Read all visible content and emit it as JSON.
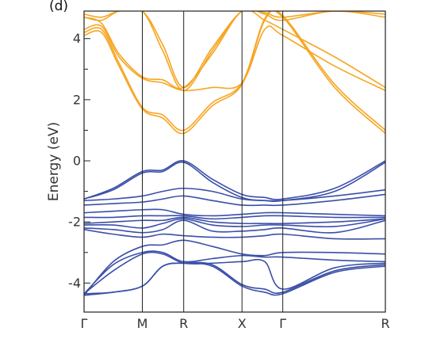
{
  "chart_data": {
    "type": "line",
    "panel_label": "(d)",
    "title": "",
    "xlabel": "",
    "ylabel": "Energy (eV)",
    "ylim": [
      -4.95,
      4.9
    ],
    "yticks": [
      {
        "value": 4,
        "label": "4"
      },
      {
        "value": 2,
        "label": "2"
      },
      {
        "value": 0,
        "label": "0"
      },
      {
        "value": -2,
        "label": "-2"
      },
      {
        "value": -4,
        "label": "-4"
      }
    ],
    "x_range": [
      0,
      5.17
    ],
    "kpoints": [
      {
        "label": "Γ",
        "x": 0
      },
      {
        "label": "M",
        "x": 1.0
      },
      {
        "label": "R",
        "x": 1.71
      },
      {
        "label": "X",
        "x": 2.71
      },
      {
        "label": "Γ",
        "x": 3.41
      },
      {
        "label": "R",
        "x": 5.17
      }
    ],
    "grid": false,
    "colors": {
      "conduction": "#f5a623",
      "valence": "#3a4fa8",
      "axis": "#222222"
    },
    "series": [
      {
        "band": "valence",
        "x": [
          0,
          0.5,
          1.0,
          1.35,
          1.71,
          2.2,
          2.71,
          3.1,
          3.41,
          4.3,
          5.17
        ],
        "y": [
          -1.25,
          -0.9,
          -0.35,
          -0.3,
          0.0,
          -0.6,
          -1.1,
          -1.2,
          -1.25,
          -0.9,
          0.0
        ]
      },
      {
        "band": "valence",
        "x": [
          0,
          0.5,
          1.0,
          1.35,
          1.71,
          2.2,
          2.71,
          3.1,
          3.41,
          4.3,
          5.17
        ],
        "y": [
          -1.25,
          -0.95,
          -0.4,
          -0.35,
          -0.05,
          -0.7,
          -1.2,
          -1.3,
          -1.3,
          -1.0,
          -0.05
        ]
      },
      {
        "band": "valence",
        "x": [
          0,
          0.5,
          1.0,
          1.35,
          1.71,
          2.2,
          2.71,
          3.1,
          3.41,
          4.3,
          5.17
        ],
        "y": [
          -1.3,
          -1.25,
          -1.15,
          -1.0,
          -0.9,
          -1.0,
          -1.25,
          -1.3,
          -1.3,
          -1.15,
          -0.95
        ]
      },
      {
        "band": "valence",
        "x": [
          0,
          0.5,
          1.0,
          1.35,
          1.71,
          2.2,
          2.71,
          3.1,
          3.41,
          4.3,
          5.17
        ],
        "y": [
          -1.45,
          -1.4,
          -1.35,
          -1.25,
          -1.15,
          -1.3,
          -1.45,
          -1.45,
          -1.45,
          -1.3,
          -1.1
        ]
      },
      {
        "band": "valence",
        "x": [
          0,
          0.5,
          1.0,
          1.35,
          1.71,
          2.2,
          2.71,
          3.1,
          3.41,
          4.3,
          5.17
        ],
        "y": [
          -1.7,
          -1.65,
          -1.6,
          -1.6,
          -1.75,
          -1.8,
          -1.75,
          -1.7,
          -1.7,
          -1.75,
          -1.8
        ]
      },
      {
        "band": "valence",
        "x": [
          0,
          0.5,
          1.0,
          1.35,
          1.71,
          2.2,
          2.71,
          3.1,
          3.41,
          4.3,
          5.17
        ],
        "y": [
          -1.85,
          -1.85,
          -1.8,
          -1.8,
          -1.8,
          -1.9,
          -1.85,
          -1.8,
          -1.8,
          -1.85,
          -1.85
        ]
      },
      {
        "band": "valence",
        "x": [
          0,
          0.5,
          1.0,
          1.35,
          1.71,
          2.2,
          2.71,
          3.1,
          3.41,
          4.3,
          5.17
        ],
        "y": [
          -2.05,
          -2.0,
          -1.95,
          -1.95,
          -1.85,
          -2.0,
          -2.05,
          -2.05,
          -2.05,
          -2.0,
          -1.9
        ]
      },
      {
        "band": "valence",
        "x": [
          0,
          0.5,
          1.0,
          1.35,
          1.71,
          2.2,
          2.71,
          3.1,
          3.41,
          4.3,
          5.17
        ],
        "y": [
          -2.1,
          -2.1,
          -2.2,
          -2.05,
          -1.9,
          -2.1,
          -2.15,
          -2.1,
          -2.1,
          -2.15,
          -1.9
        ]
      },
      {
        "band": "valence",
        "x": [
          0,
          0.5,
          1.0,
          1.35,
          1.71,
          2.2,
          2.71,
          3.1,
          3.41,
          4.3,
          5.17
        ],
        "y": [
          -2.2,
          -2.25,
          -2.35,
          -2.25,
          -1.95,
          -2.3,
          -2.3,
          -2.25,
          -2.2,
          -2.35,
          -1.95
        ]
      },
      {
        "band": "valence",
        "x": [
          0,
          0.5,
          1.0,
          1.35,
          1.71,
          2.2,
          2.71,
          3.1,
          3.41,
          4.3,
          5.17
        ],
        "y": [
          -2.25,
          -2.4,
          -2.5,
          -2.4,
          -2.45,
          -2.5,
          -2.5,
          -2.45,
          -2.4,
          -2.55,
          -2.55
        ]
      },
      {
        "band": "valence",
        "x": [
          0,
          0.5,
          1.0,
          1.35,
          1.71,
          2.2,
          2.71,
          3.1,
          3.41,
          4.3,
          5.17
        ],
        "y": [
          -4.4,
          -3.3,
          -2.8,
          -2.75,
          -2.6,
          -2.8,
          -3.05,
          -3.1,
          -3.0,
          -3.0,
          -3.05
        ]
      },
      {
        "band": "valence",
        "x": [
          0,
          0.5,
          1.0,
          1.35,
          1.71,
          2.2,
          2.71,
          3.1,
          3.41,
          4.3,
          5.17
        ],
        "y": [
          -4.35,
          -3.4,
          -3.0,
          -3.0,
          -3.3,
          -3.2,
          -3.1,
          -3.15,
          -3.15,
          -3.25,
          -3.3
        ]
      },
      {
        "band": "valence",
        "x": [
          0,
          0.5,
          1.0,
          1.35,
          1.71,
          2.2,
          2.71,
          3.1,
          3.41,
          4.3,
          5.17
        ],
        "y": [
          -4.35,
          -3.6,
          -3.05,
          -3.05,
          -3.35,
          -3.35,
          -3.3,
          -3.3,
          -4.2,
          -3.5,
          -3.35
        ]
      },
      {
        "band": "valence",
        "x": [
          0,
          0.5,
          1.0,
          1.35,
          1.71,
          2.2,
          2.71,
          3.1,
          3.41,
          4.3,
          5.17
        ],
        "y": [
          -4.35,
          -4.3,
          -4.1,
          -3.45,
          -3.35,
          -3.4,
          -4.05,
          -4.2,
          -4.3,
          -3.6,
          -3.4
        ]
      },
      {
        "band": "valence",
        "x": [
          0,
          0.5,
          1.0,
          1.35,
          1.71,
          2.2,
          2.71,
          3.1,
          3.41,
          4.3,
          5.17
        ],
        "y": [
          -4.4,
          -4.3,
          -4.1,
          -3.45,
          -3.35,
          -3.45,
          -4.1,
          -4.3,
          -4.35,
          -3.65,
          -3.45
        ]
      },
      {
        "band": "conduction",
        "x": [
          0,
          0.3,
          0.6,
          1.0,
          1.35,
          1.71,
          2.2,
          2.71,
          3.1,
          3.41,
          4.3,
          5.17
        ],
        "y": [
          4.1,
          4.2,
          3.1,
          1.7,
          1.4,
          0.9,
          1.8,
          2.5,
          4.6,
          4.7,
          2.4,
          0.9
        ]
      },
      {
        "band": "conduction",
        "x": [
          0,
          0.3,
          0.6,
          1.0,
          1.35,
          1.71,
          2.2,
          2.71,
          3.1,
          3.41,
          4.3,
          5.17
        ],
        "y": [
          4.2,
          4.3,
          3.2,
          1.75,
          1.5,
          1.0,
          1.9,
          2.55,
          4.65,
          4.75,
          2.5,
          1.0
        ]
      },
      {
        "band": "conduction",
        "x": [
          0,
          0.3,
          0.6,
          1.0,
          1.35,
          1.71,
          2.2,
          2.71,
          3.1,
          3.41,
          4.3,
          5.17
        ],
        "y": [
          4.3,
          4.4,
          3.4,
          2.7,
          2.55,
          2.3,
          2.4,
          2.55,
          4.3,
          4.1,
          3.1,
          2.3
        ]
      },
      {
        "band": "conduction",
        "x": [
          0,
          0.3,
          0.6,
          1.0,
          1.35,
          1.71,
          2.2,
          2.71,
          3.1,
          3.41,
          4.3,
          5.17
        ],
        "y": [
          4.7,
          4.5,
          3.5,
          2.75,
          2.65,
          2.4,
          3.5,
          4.9,
          4.6,
          4.3,
          3.4,
          2.4
        ]
      },
      {
        "band": "conduction",
        "x": [
          0,
          0.3,
          0.6,
          1.0,
          1.35,
          1.71,
          2.2,
          2.71,
          3.1,
          3.41,
          4.3,
          5.17
        ],
        "y": [
          4.7,
          4.6,
          4.9,
          4.9,
          3.6,
          2.3,
          3.6,
          4.9,
          4.8,
          4.6,
          4.9,
          4.7
        ]
      },
      {
        "band": "conduction",
        "x": [
          0,
          0.3,
          0.6,
          1.0,
          1.35,
          1.71,
          2.2,
          2.71,
          3.1,
          3.41,
          4.3,
          5.17
        ],
        "y": [
          4.8,
          4.7,
          4.9,
          4.9,
          3.8,
          2.4,
          3.7,
          4.9,
          4.85,
          4.7,
          4.9,
          4.8
        ]
      }
    ]
  }
}
